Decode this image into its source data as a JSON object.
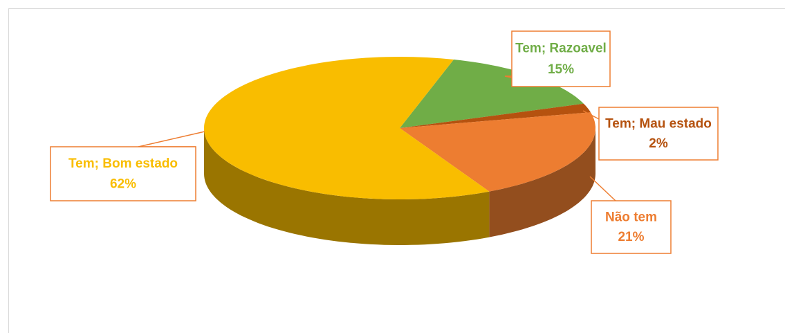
{
  "chart_data": {
    "type": "pie3d",
    "categories": [
      "Tem; Razoavel",
      "Tem; Mau estado",
      "Não tem",
      "Tem; Bom estado"
    ],
    "values": [
      15,
      2,
      21,
      62
    ],
    "value_labels": [
      "15%",
      "2%",
      "21%",
      "62%"
    ],
    "colors": [
      "#70ad47",
      "#b5520f",
      "#ed7d31",
      "#f9bd00"
    ]
  }
}
